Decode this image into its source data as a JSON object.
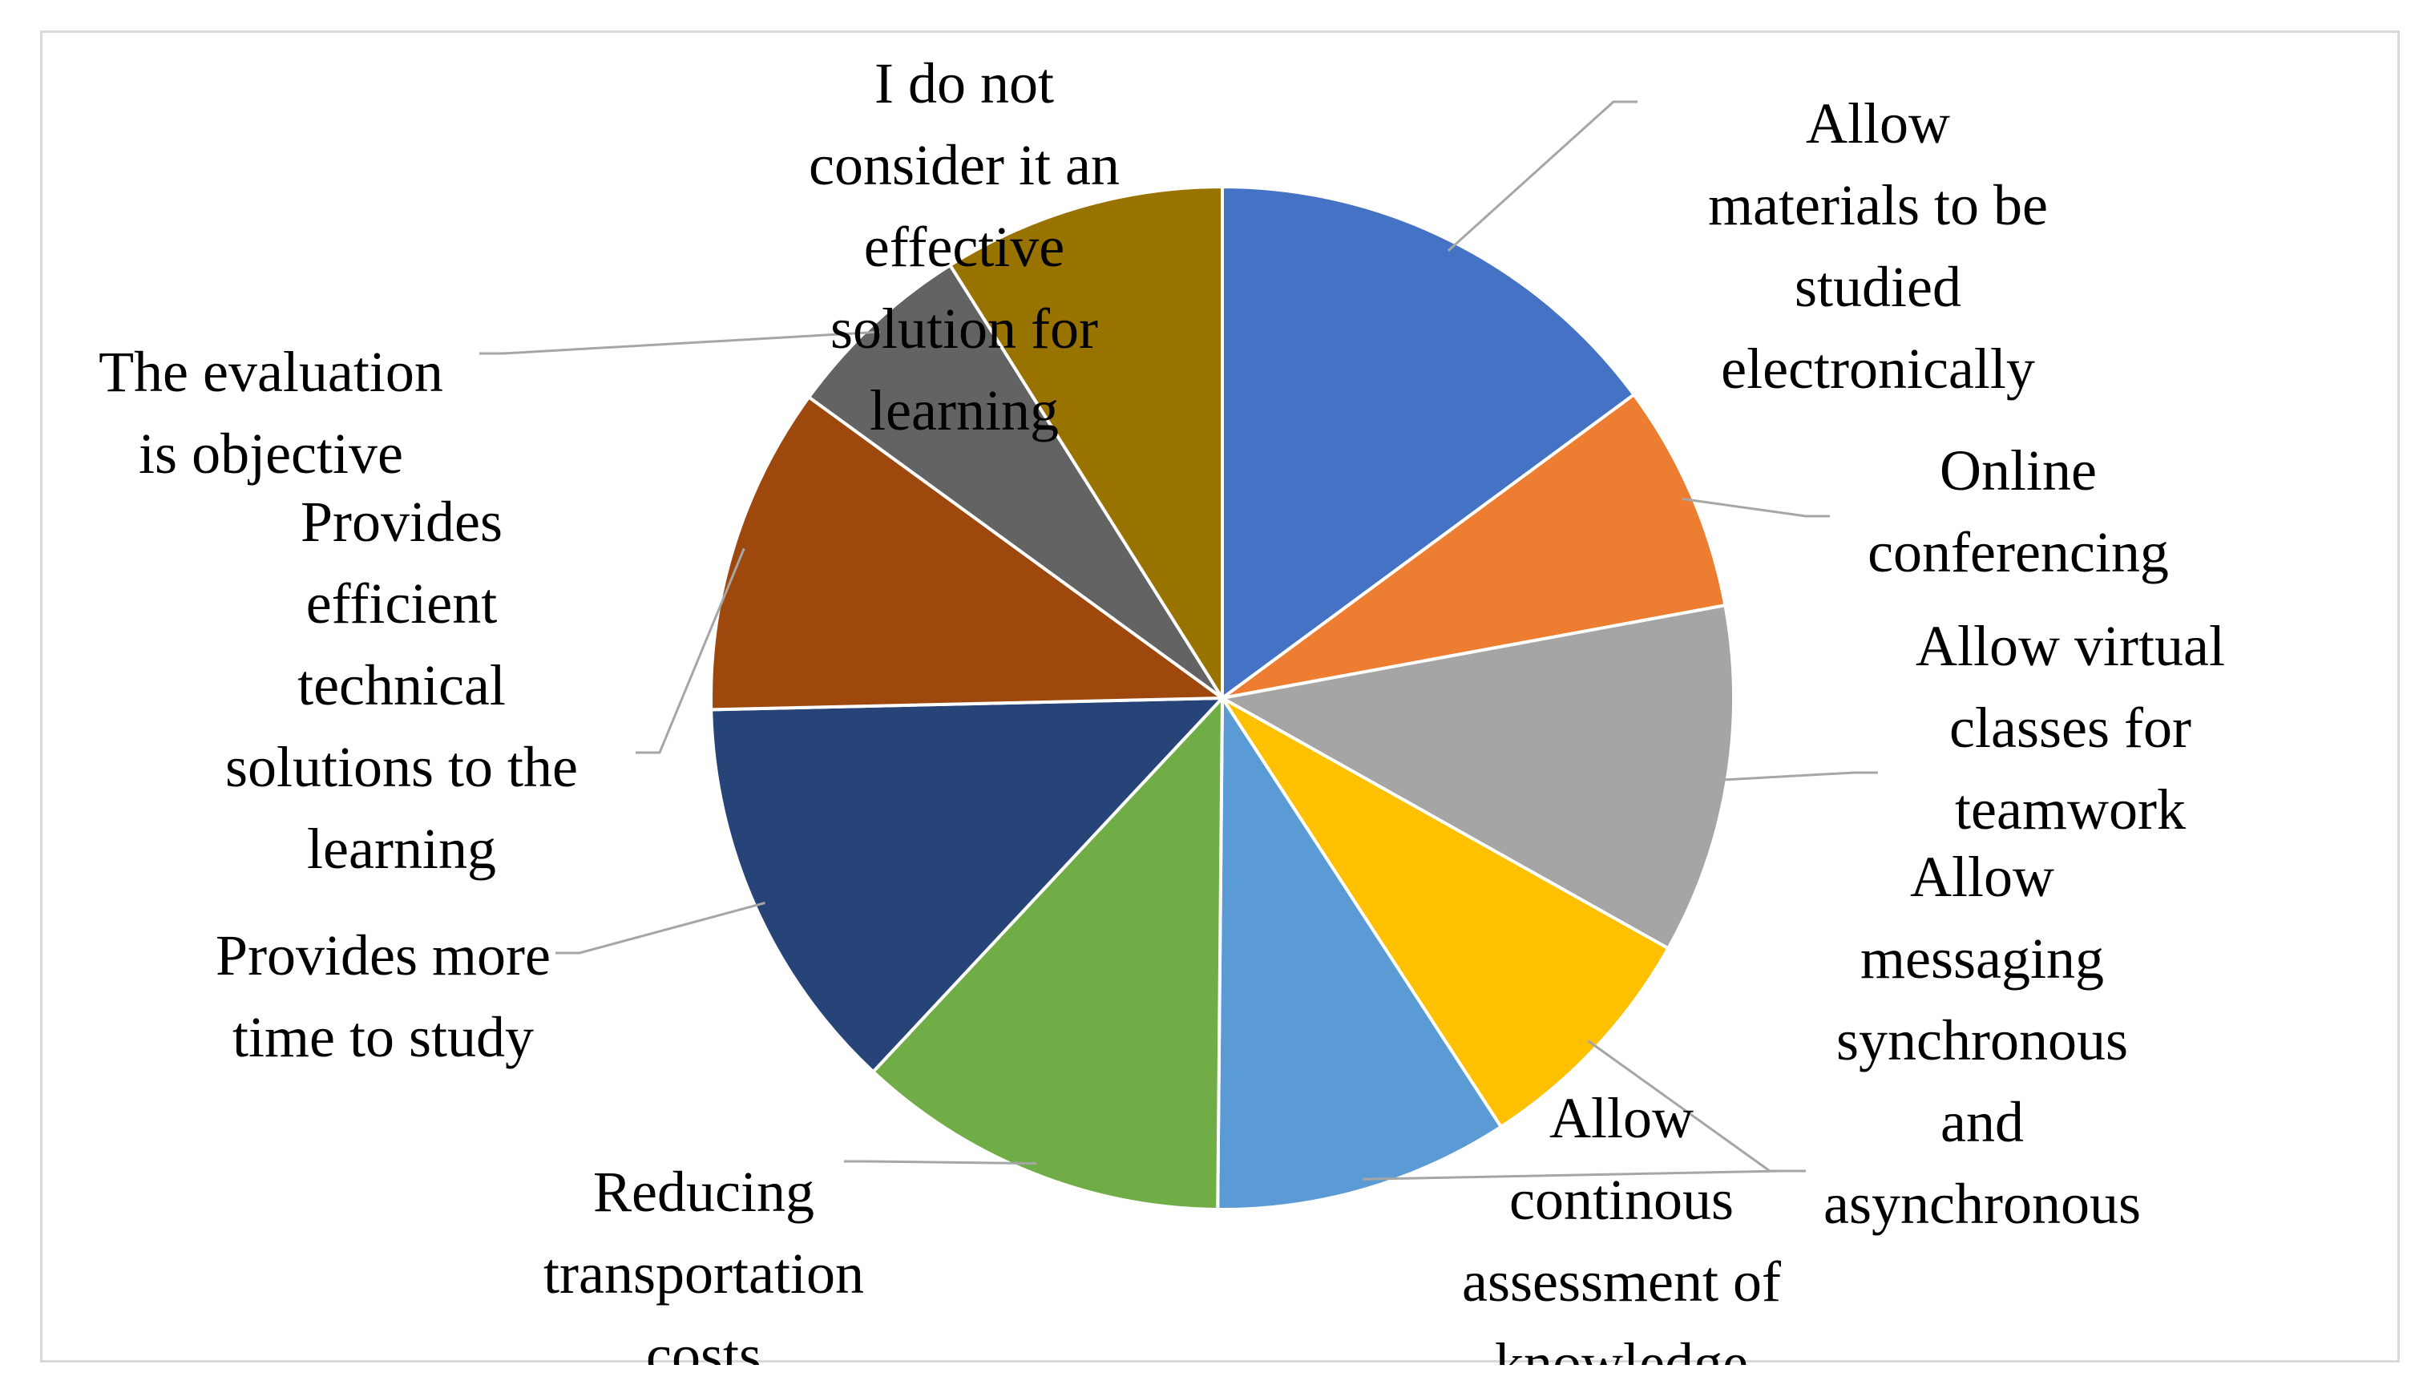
{
  "chart_data": {
    "type": "pie",
    "title": "",
    "start_angle_deg": 0,
    "direction": "clockwise",
    "slices": [
      {
        "label": "Allow materials to be studied electronically",
        "value": 15.5,
        "color": "#4472c4"
      },
      {
        "label": "Online conferencing",
        "value": 7.5,
        "color": "#ed7d31"
      },
      {
        "label": "Allow virtual classes for teamwork",
        "value": 11.5,
        "color": "#a5a5a5"
      },
      {
        "label": "Allow messaging synchronous and asynchronous",
        "value": 8.0,
        "color": "#ffc000"
      },
      {
        "label": "Allow continous assessment of knowledge",
        "value": 9.7,
        "color": "#5b9bd5"
      },
      {
        "label": "Reducing transportation costs",
        "value": 12.3,
        "color": "#70ad47"
      },
      {
        "label": "Provides more time to study",
        "value": 13.2,
        "color": "#264478"
      },
      {
        "label": "Provides efficient technical solutions to the learning",
        "value": 10.8,
        "color": "#9e480e"
      },
      {
        "label": "The evaluation is objective",
        "value": 6.3,
        "color": "#636363"
      },
      {
        "label": "I do not consider it an effective solution for learning",
        "value": 9.3,
        "color": "#997300"
      }
    ]
  },
  "labels": {
    "s0": [
      "Allow",
      "materials to be",
      "studied",
      "electronically"
    ],
    "s1": [
      "Online",
      "conferencing"
    ],
    "s2": [
      "Allow virtual",
      "classes for",
      "teamwork"
    ],
    "s3": [
      "Allow",
      "messaging",
      "synchronous",
      "and",
      "asynchronous"
    ],
    "s4": [
      "Allow",
      "continous",
      "assessment of",
      "knowledge"
    ],
    "s5": [
      "Reducing",
      "transportation",
      "costs"
    ],
    "s6": [
      "Provides more",
      "time to study"
    ],
    "s7": [
      "Provides",
      "efficient",
      "technical",
      "solutions to the",
      "learning"
    ],
    "s8": [
      "The evaluation",
      "is objective"
    ],
    "s9": [
      "I do not",
      "consider it an",
      "effective",
      "solution for",
      "learning"
    ]
  }
}
